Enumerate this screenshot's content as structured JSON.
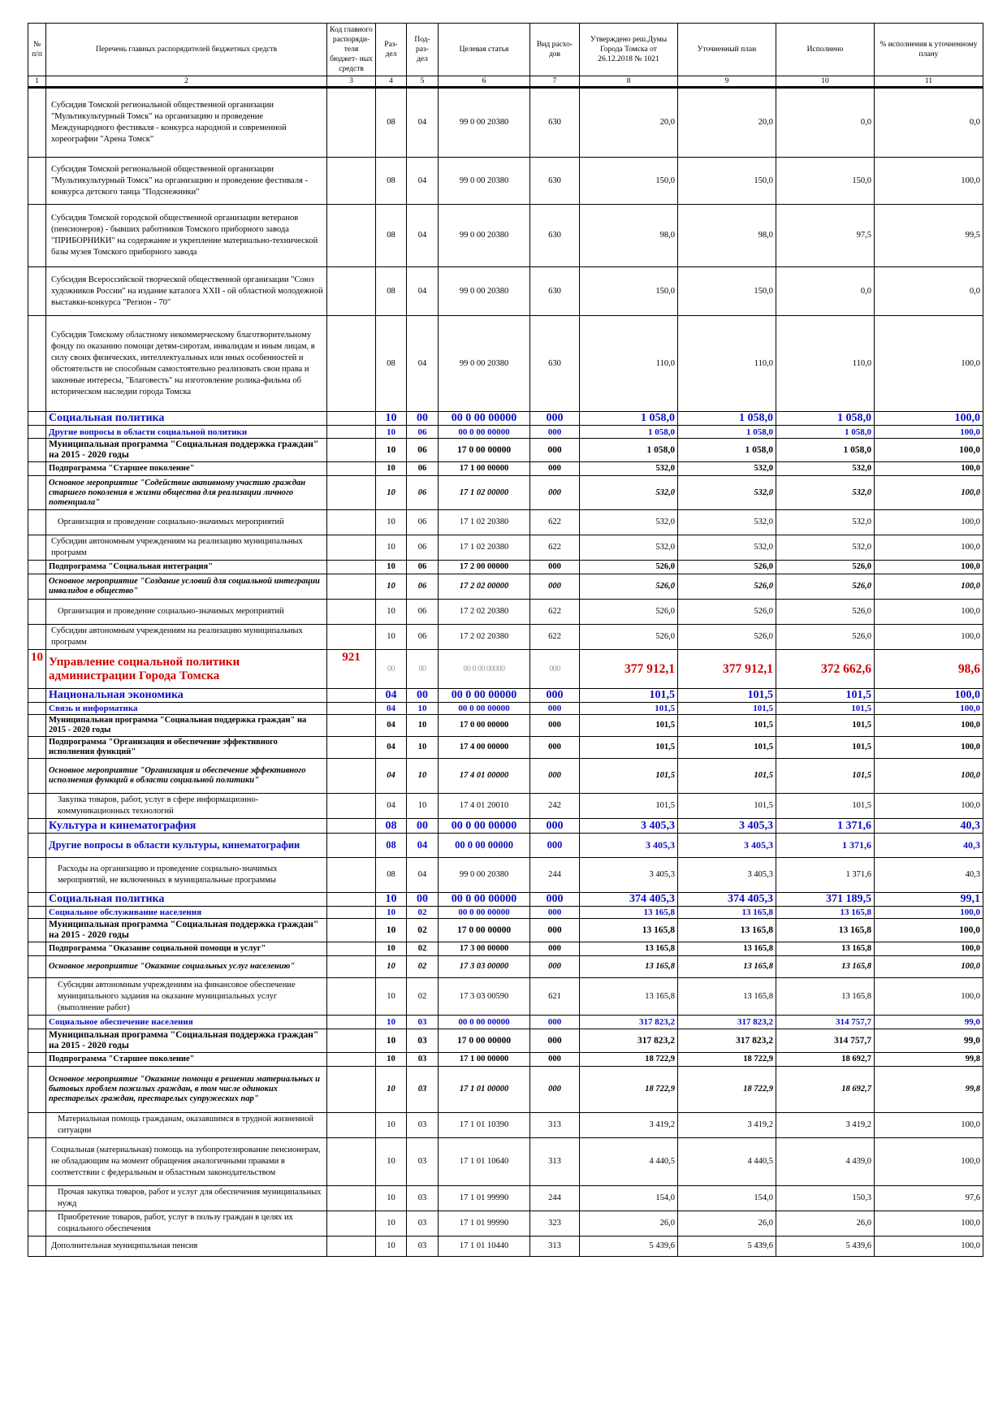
{
  "header": {
    "num": "№ п/п",
    "name": "Перечень главных распорядителей бюджетных средств",
    "code": "Код главного распоряди- теля бюджет- ных средств",
    "section": "Раз- дел",
    "subsection": "Под- раз- дел",
    "target": "Целевая статья",
    "exptype": "Вид расхо- дов",
    "approved": "Утверждено реш.Думы Города Томска от 26.12.2018 № 1021",
    "plan": "Уточненный план",
    "done": "Исполнено",
    "pct": "% исполнения к уточненному плану"
  },
  "column_numbers": [
    "1",
    "2",
    "3",
    "4",
    "5",
    "6",
    "7",
    "8",
    "9",
    "10",
    "11"
  ],
  "rows": [
    {
      "kind": "item",
      "name": "Субсидия Томской региональной общественной организации \"Мультикультурный Томск\" на организацию и проведение Международного фестиваля - конкурса народной и современной хореографии \"Арена Томск\"",
      "section": "08",
      "subsection": "04",
      "target": "99 0 00 20380",
      "exptype": "630",
      "approved": "20,0",
      "plan": "20,0",
      "done": "0,0",
      "pct": "0,0"
    },
    {
      "kind": "item",
      "name": "Субсидия Томской региональной общественной организации \"Мультикультурный Томск\" на организацию и проведение фестиваля - конкурса детского танца \"Подснежники\"",
      "section": "08",
      "subsection": "04",
      "target": "99 0 00 20380",
      "exptype": "630",
      "approved": "150,0",
      "plan": "150,0",
      "done": "150,0",
      "pct": "100,0"
    },
    {
      "kind": "item",
      "name": "Субсидия Томской городской общественной организации ветеранов (пенсионеров) - бывших работников Томского приборного завода \"ПРИБОРНИКИ\" на содержание и укрепление материально-технической базы музея Томского приборного завода",
      "section": "08",
      "subsection": "04",
      "target": "99 0 00 20380",
      "exptype": "630",
      "approved": "98,0",
      "plan": "98,0",
      "done": "97,5",
      "pct": "99,5"
    },
    {
      "kind": "item",
      "name": "Субсидия Всероссийской творческой общественной организации \"Союз художников России\" на издание каталога XXII - ой областной молодежной выставки-конкурса \"Регион - 70\"",
      "section": "08",
      "subsection": "04",
      "target": "99 0 00 20380",
      "exptype": "630",
      "approved": "150,0",
      "plan": "150,0",
      "done": "0,0",
      "pct": "0,0"
    },
    {
      "kind": "item",
      "name": "Субсидия Томскому областному некоммерческому благотворительному фонду по оказанию помощи детям-сиротам, инвалидам и иным лицам, в силу своих физических, интеллектуальных или иных особенностей и обстоятельств не способным самостоятельно реализовать свои права и законные интересы, \"Благовесть\" на изготовление ролика-фильма об историческом наследии города Томска",
      "section": "08",
      "subsection": "04",
      "target": "99 0 00 20380",
      "exptype": "630",
      "approved": "110,0",
      "plan": "110,0",
      "done": "110,0",
      "pct": "100,0"
    },
    {
      "kind": "sec",
      "name": "Социальная политика",
      "section": "10",
      "subsection": "00",
      "target": "00 0 00 00000",
      "exptype": "000",
      "approved": "1 058,0",
      "plan": "1 058,0",
      "done": "1 058,0",
      "pct": "100,0"
    },
    {
      "kind": "sub-s",
      "name": "Другие вопросы в области социальной политики",
      "section": "10",
      "subsection": "06",
      "target": "00 0 00 00000",
      "exptype": "000",
      "approved": "1 058,0",
      "plan": "1 058,0",
      "done": "1 058,0",
      "pct": "100,0"
    },
    {
      "kind": "prog",
      "name": "Муниципальная программа \"Социальная поддержка граждан\" на 2015 - 2020 годы",
      "section": "10",
      "subsection": "06",
      "target": "17 0 00 00000",
      "exptype": "000",
      "approved": "1 058,0",
      "plan": "1 058,0",
      "done": "1 058,0",
      "pct": "100,0"
    },
    {
      "kind": "prog-s",
      "name": "Подпрограмма \"Старшее поколение\"",
      "section": "10",
      "subsection": "06",
      "target": "17 1 00 00000",
      "exptype": "000",
      "approved": "532,0",
      "plan": "532,0",
      "done": "532,0",
      "pct": "100,0"
    },
    {
      "kind": "meas",
      "name": "Основное мероприятие \"Содействие активному участию граждан старшего поколения в жизни общества для реализации личного потенциала\"",
      "section": "10",
      "subsection": "06",
      "target": "17 1 02 00000",
      "exptype": "000",
      "approved": "532,0",
      "plan": "532,0",
      "done": "532,0",
      "pct": "100,0"
    },
    {
      "kind": "item-i",
      "name": "Организация и проведение социально-значимых мероприятий",
      "section": "10",
      "subsection": "06",
      "target": "17 1 02 20380",
      "exptype": "622",
      "approved": "532,0",
      "plan": "532,0",
      "done": "532,0",
      "pct": "100,0"
    },
    {
      "kind": "item",
      "name": "Субсидии автономным учреждениям на реализацию муниципальных программ",
      "section": "10",
      "subsection": "06",
      "target": "17 1 02 20380",
      "exptype": "622",
      "approved": "532,0",
      "plan": "532,0",
      "done": "532,0",
      "pct": "100,0"
    },
    {
      "kind": "prog-s",
      "name": "Подпрограмма \"Социальная интеграция\"",
      "section": "10",
      "subsection": "06",
      "target": "17 2 00 00000",
      "exptype": "000",
      "approved": "526,0",
      "plan": "526,0",
      "done": "526,0",
      "pct": "100,0"
    },
    {
      "kind": "meas",
      "name": "Основное мероприятие \"Создание условий для социальной интеграции инвалидов в общество\"",
      "section": "10",
      "subsection": "06",
      "target": "17 2 02 00000",
      "exptype": "000",
      "approved": "526,0",
      "plan": "526,0",
      "done": "526,0",
      "pct": "100,0"
    },
    {
      "kind": "item-i",
      "name": "Организация и проведение социально-значимых мероприятий",
      "section": "10",
      "subsection": "06",
      "target": "17 2 02 20380",
      "exptype": "622",
      "approved": "526,0",
      "plan": "526,0",
      "done": "526,0",
      "pct": "100,0"
    },
    {
      "kind": "item",
      "name": "Субсидии автономным учреждениям на реализацию муниципальных программ",
      "section": "10",
      "subsection": "06",
      "target": "17 2 02 20380",
      "exptype": "622",
      "approved": "526,0",
      "plan": "526,0",
      "done": "526,0",
      "pct": "100,0"
    },
    {
      "kind": "org",
      "num": "10",
      "code": "921",
      "name": "Управление социальной политики администрации Города Томска",
      "section": "00",
      "subsection": "00",
      "target": "00 0 00 00000",
      "exptype": "000",
      "approved": "377 912,1",
      "plan": "377 912,1",
      "done": "372 662,6",
      "pct": "98,6"
    },
    {
      "kind": "sec",
      "name": "Национальная экономика",
      "section": "04",
      "subsection": "00",
      "target": "00 0 00 00000",
      "exptype": "000",
      "approved": "101,5",
      "plan": "101,5",
      "done": "101,5",
      "pct": "100,0"
    },
    {
      "kind": "sub-s",
      "name": "Связь и информатика",
      "section": "04",
      "subsection": "10",
      "target": "00 0 00 00000",
      "exptype": "000",
      "approved": "101,5",
      "plan": "101,5",
      "done": "101,5",
      "pct": "100,0"
    },
    {
      "kind": "prog-s",
      "name": "Муниципальная программа \"Социальная поддержка граждан\" на 2015 - 2020 годы",
      "section": "04",
      "subsection": "10",
      "target": "17 0 00 00000",
      "exptype": "000",
      "approved": "101,5",
      "plan": "101,5",
      "done": "101,5",
      "pct": "100,0"
    },
    {
      "kind": "prog-s",
      "name": "Подпрограмма \"Организация и обеспечение эффективного исполнения функций\"",
      "section": "04",
      "subsection": "10",
      "target": "17 4 00 00000",
      "exptype": "000",
      "approved": "101,5",
      "plan": "101,5",
      "done": "101,5",
      "pct": "100,0"
    },
    {
      "kind": "meas",
      "name": "Основное мероприятие \"Организация и обеспечение эффективного исполнения функций в области социальной политики\"",
      "section": "04",
      "subsection": "10",
      "target": "17 4 01 00000",
      "exptype": "000",
      "approved": "101,5",
      "plan": "101,5",
      "done": "101,5",
      "pct": "100,0"
    },
    {
      "kind": "item-i",
      "name": "Закупка товаров, работ, услуг в сфере информационно-коммуникационных технологий",
      "section": "04",
      "subsection": "10",
      "target": "17 4 01 20010",
      "exptype": "242",
      "approved": "101,5",
      "plan": "101,5",
      "done": "101,5",
      "pct": "100,0"
    },
    {
      "kind": "sec",
      "name": "Культура и кинематография",
      "section": "08",
      "subsection": "00",
      "target": "00 0 00 00000",
      "exptype": "000",
      "approved": "3 405,3",
      "plan": "3 405,3",
      "done": "1 371,6",
      "pct": "40,3"
    },
    {
      "kind": "sub",
      "name": "Другие вопросы в области культуры, кинематографии",
      "section": "08",
      "subsection": "04",
      "target": "00 0 00 00000",
      "exptype": "000",
      "approved": "3 405,3",
      "plan": "3 405,3",
      "done": "1 371,6",
      "pct": "40,3"
    },
    {
      "kind": "item-i",
      "name": "Расходы на организацию и проведение социально-значимых мероприятий, не включенных в муниципальные программы",
      "section": "08",
      "subsection": "04",
      "target": "99 0 00 20380",
      "exptype": "244",
      "approved": "3 405,3",
      "plan": "3 405,3",
      "done": "1 371,6",
      "pct": "40,3"
    },
    {
      "kind": "sec",
      "name": "Социальная политика",
      "section": "10",
      "subsection": "00",
      "target": "00 0 00 00000",
      "exptype": "000",
      "approved": "374 405,3",
      "plan": "374 405,3",
      "done": "371 189,5",
      "pct": "99,1"
    },
    {
      "kind": "sub-s",
      "name": "Социальное обслуживание населения",
      "section": "10",
      "subsection": "02",
      "target": "00 0 00 00000",
      "exptype": "000",
      "approved": "13 165,8",
      "plan": "13 165,8",
      "done": "13 165,8",
      "pct": "100,0"
    },
    {
      "kind": "prog",
      "name": "Муниципальная программа \"Социальная поддержка граждан\" на 2015 - 2020 годы",
      "section": "10",
      "subsection": "02",
      "target": "17 0 00 00000",
      "exptype": "000",
      "approved": "13 165,8",
      "plan": "13 165,8",
      "done": "13 165,8",
      "pct": "100,0"
    },
    {
      "kind": "prog-s",
      "name": "Подпрограмма \"Оказание социальной помощи и услуг\"",
      "section": "10",
      "subsection": "02",
      "target": "17 3 00 00000",
      "exptype": "000",
      "approved": "13 165,8",
      "plan": "13 165,8",
      "done": "13 165,8",
      "pct": "100,0"
    },
    {
      "kind": "meas",
      "name": "Основное мероприятие \"Оказание социальных услуг населению\"",
      "section": "10",
      "subsection": "02",
      "target": "17 3 03 00000",
      "exptype": "000",
      "approved": "13 165,8",
      "plan": "13 165,8",
      "done": "13 165,8",
      "pct": "100,0"
    },
    {
      "kind": "item-i",
      "name": "Субсидии автономным учреждениям на финансовое обеспечение муниципального задания на оказание муниципальных услуг (выполнение работ)",
      "section": "10",
      "subsection": "02",
      "target": "17 3 03 00590",
      "exptype": "621",
      "approved": "13 165,8",
      "plan": "13 165,8",
      "done": "13 165,8",
      "pct": "100,0"
    },
    {
      "kind": "sub-s",
      "name": "Социальное обеспечение населения",
      "section": "10",
      "subsection": "03",
      "target": "00 0 00 00000",
      "exptype": "000",
      "approved": "317 823,2",
      "plan": "317 823,2",
      "done": "314 757,7",
      "pct": "99,0"
    },
    {
      "kind": "prog",
      "name": "Муниципальная программа \"Социальная поддержка граждан\" на 2015 - 2020 годы",
      "section": "10",
      "subsection": "03",
      "target": "17 0 00 00000",
      "exptype": "000",
      "approved": "317 823,2",
      "plan": "317 823,2",
      "done": "314 757,7",
      "pct": "99,0"
    },
    {
      "kind": "prog-s",
      "name": "Подпрограмма \"Старшее поколение\"",
      "section": "10",
      "subsection": "03",
      "target": "17 1 00 00000",
      "exptype": "000",
      "approved": "18 722,9",
      "plan": "18 722,9",
      "done": "18 692,7",
      "pct": "99,8"
    },
    {
      "kind": "meas",
      "name": "Основное мероприятие \"Оказание помощи в решении материальных и бытовых проблем пожилых граждан, в том числе одиноких престарелых граждан, престарелых супружеских пар\"",
      "section": "10",
      "subsection": "03",
      "target": "17 1 01 00000",
      "exptype": "000",
      "approved": "18 722,9",
      "plan": "18 722,9",
      "done": "18 692,7",
      "pct": "99,8"
    },
    {
      "kind": "item-i",
      "name": "Материальная помощь гражданам, оказавшимся в трудной жизненной ситуации",
      "section": "10",
      "subsection": "03",
      "target": "17 1 01 10390",
      "exptype": "313",
      "approved": "3 419,2",
      "plan": "3 419,2",
      "done": "3 419,2",
      "pct": "100,0"
    },
    {
      "kind": "item",
      "name": "Социальная (материальная) помощь на зубопротезирование пенсионерам, не обладающим на момент обращения аналогичными правами в соответствии с федеральным и областным законодательством",
      "section": "10",
      "subsection": "03",
      "target": "17 1 01 10640",
      "exptype": "313",
      "approved": "4 440,5",
      "plan": "4 440,5",
      "done": "4 439,0",
      "pct": "100,0"
    },
    {
      "kind": "item-i",
      "name": "Прочая закупка товаров, работ и услуг для обеспечения муниципальных нужд",
      "section": "10",
      "subsection": "03",
      "target": "17 1 01 99990",
      "exptype": "244",
      "approved": "154,0",
      "plan": "154,0",
      "done": "150,3",
      "pct": "97,6"
    },
    {
      "kind": "item-i",
      "name": "Приобретение товаров, работ, услуг в пользу граждан в целях их социального обеспечения",
      "section": "10",
      "subsection": "03",
      "target": "17 1 01 99990",
      "exptype": "323",
      "approved": "26,0",
      "plan": "26,0",
      "done": "26,0",
      "pct": "100,0"
    },
    {
      "kind": "item",
      "name": "Дополнительная муниципальная пенсия",
      "section": "10",
      "subsection": "03",
      "target": "17 1 01 10440",
      "exptype": "313",
      "approved": "5 439,6",
      "plan": "5 439,6",
      "done": "5 439,6",
      "pct": "100,0"
    }
  ]
}
